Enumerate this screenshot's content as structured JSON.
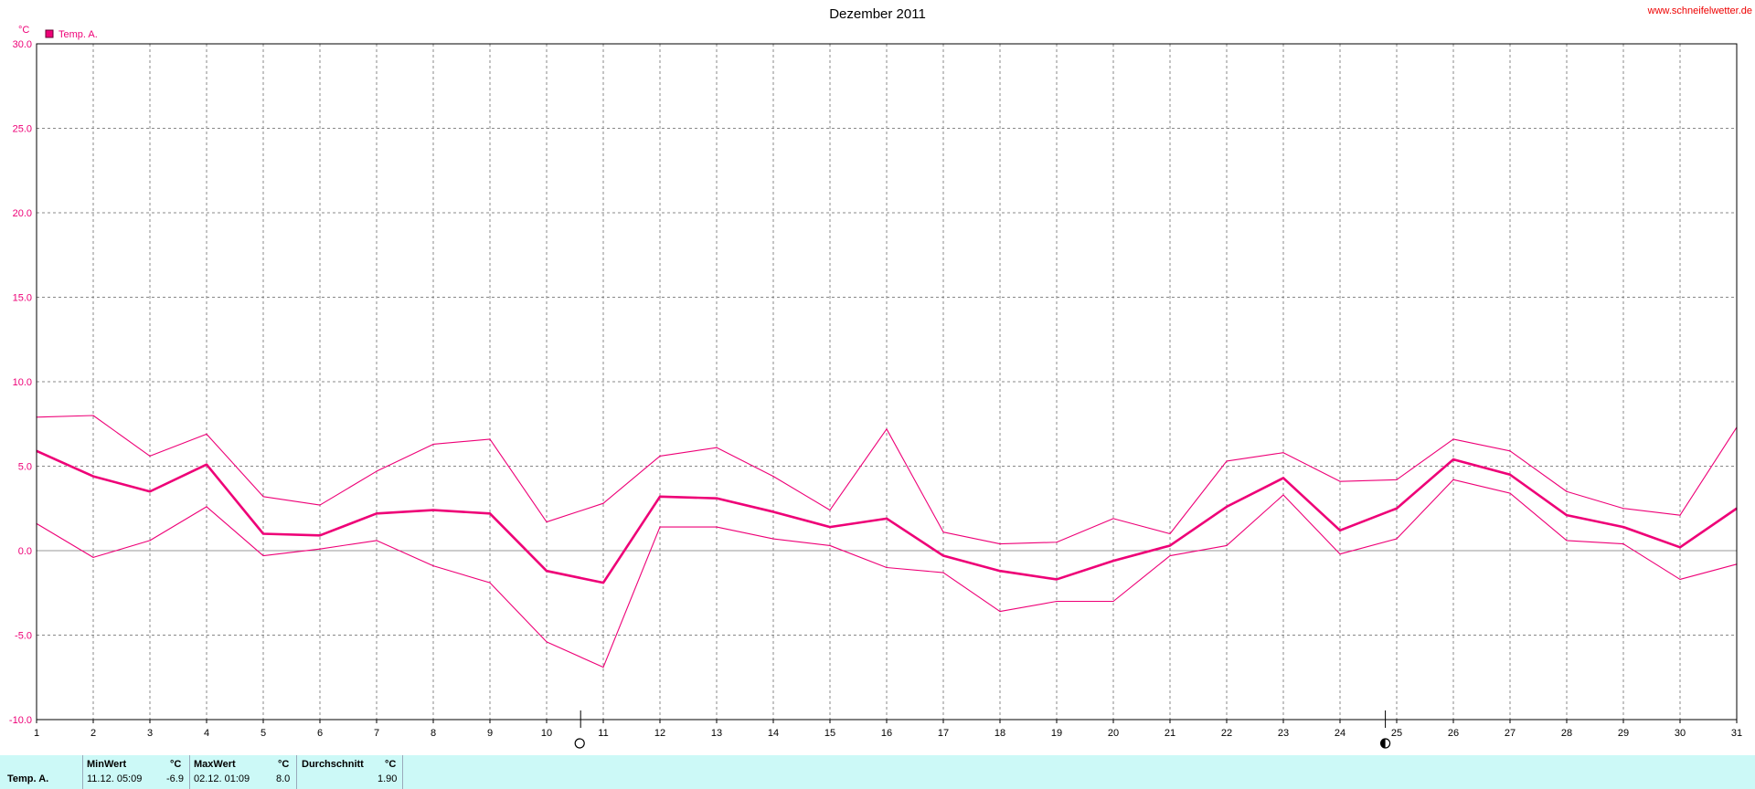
{
  "header": {
    "title": "Dezember 2011",
    "site": "www.schneifelwetter.de"
  },
  "colors": {
    "series": "#ee0077",
    "grid": "#888888",
    "footer_bg": "#ccf9f7"
  },
  "chart_data": {
    "type": "line",
    "title": "Dezember 2011",
    "ylabel": "°C",
    "xlabel": "",
    "ylim": [
      -10,
      30
    ],
    "xlim": [
      1,
      31
    ],
    "y_ticks": [
      "30.0",
      "25.0",
      "20.0",
      "15.0",
      "10.0",
      "5.0",
      "0.0",
      "-5.0",
      "-10.0"
    ],
    "x": [
      1,
      2,
      3,
      4,
      5,
      6,
      7,
      8,
      9,
      10,
      11,
      12,
      13,
      14,
      15,
      16,
      17,
      18,
      19,
      20,
      21,
      22,
      23,
      24,
      25,
      26,
      27,
      28,
      29,
      30,
      31
    ],
    "legend": [
      "Temp. A."
    ],
    "grid": true,
    "legend_position": "top-left",
    "series": [
      {
        "name": "Temp. A.",
        "role": "mean",
        "values": [
          5.9,
          4.4,
          3.5,
          5.1,
          1.0,
          0.9,
          2.2,
          2.4,
          2.2,
          -1.2,
          -1.9,
          3.2,
          3.1,
          2.3,
          1.4,
          1.9,
          -0.3,
          -1.2,
          -1.7,
          -0.6,
          0.3,
          2.6,
          4.3,
          1.2,
          2.5,
          5.4,
          4.5,
          2.1,
          1.4,
          0.2,
          2.5
        ]
      },
      {
        "role": "max",
        "values": [
          7.9,
          8.0,
          5.6,
          6.9,
          3.2,
          2.7,
          4.7,
          6.3,
          6.6,
          1.7,
          2.8,
          5.6,
          6.1,
          4.4,
          2.4,
          7.2,
          1.1,
          0.4,
          0.5,
          1.9,
          1.0,
          5.3,
          5.8,
          4.1,
          4.2,
          6.6,
          5.9,
          3.5,
          2.5,
          2.1,
          7.3
        ]
      },
      {
        "role": "min",
        "values": [
          1.6,
          -0.4,
          0.6,
          2.6,
          -0.3,
          0.1,
          0.6,
          -0.9,
          -1.9,
          -5.4,
          -6.9,
          1.4,
          1.4,
          0.7,
          0.3,
          -1.0,
          -1.3,
          -3.6,
          -3.0,
          -3.0,
          -0.3,
          0.3,
          3.3,
          -0.2,
          0.7,
          4.2,
          3.4,
          0.6,
          0.4,
          -1.7,
          -0.8
        ]
      }
    ],
    "moon_phases": [
      {
        "day": 10.6,
        "phase": "full-moon"
      },
      {
        "day": 24.8,
        "phase": "last-quarter"
      }
    ]
  },
  "stats": {
    "series_label": "Temp. A.",
    "min_label": "MinWert",
    "min_unit": "°C",
    "min_time": "11.12.  05:09",
    "min_value": "-6.9",
    "max_label": "MaxWert",
    "max_unit": "°C",
    "max_time": "02.12.  01:09",
    "max_value": "8.0",
    "avg_label": "Durchschnitt",
    "avg_unit": "°C",
    "avg_value": "1.90"
  }
}
